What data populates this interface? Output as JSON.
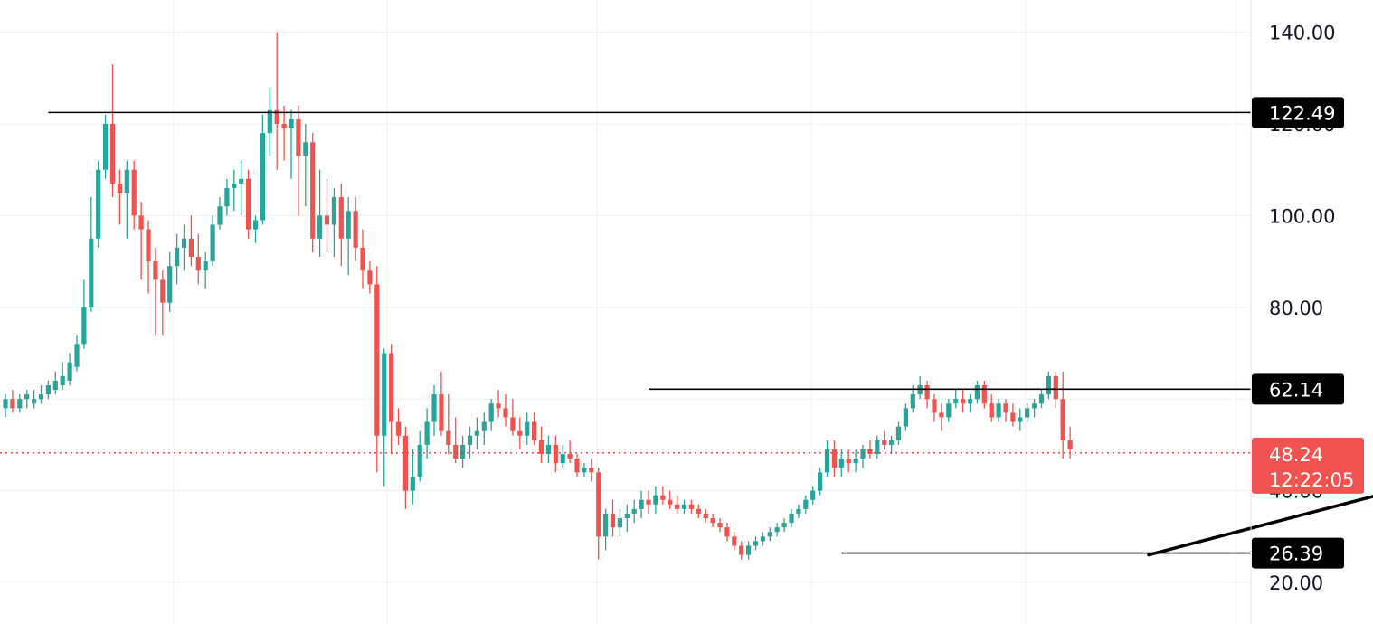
{
  "chart_data": {
    "type": "candlestick",
    "title": "",
    "xlabel": "",
    "ylabel": "",
    "ylim": [
      13,
      147
    ],
    "yticks": [
      "20.00",
      "40.00",
      "80.00",
      "100.00",
      "120.00",
      "140.00"
    ],
    "grid": true,
    "colors": {
      "up": "#26a69a",
      "down": "#ef5350",
      "line": "#000000",
      "grid": "#eef0f3",
      "price": "#f23645"
    },
    "horizontal_levels": [
      {
        "value": 122.49,
        "label": "122.49",
        "x_start": 6
      },
      {
        "value": 62.14,
        "label": "62.14",
        "x_start": 90
      },
      {
        "value": 26.39,
        "label": "26.39",
        "x_start": 117
      }
    ],
    "trendline": {
      "x_start": 160,
      "value_start": 26.0,
      "x_end": 240,
      "value_end": 58.5
    },
    "current_price": {
      "value": 48.24,
      "label": "48.24",
      "countdown": "12:22:05"
    },
    "candles": [
      [
        0,
        58,
        61,
        56,
        60
      ],
      [
        1,
        60,
        62,
        57,
        58
      ],
      [
        2,
        58,
        61,
        57,
        60
      ],
      [
        3,
        60,
        62,
        58,
        61
      ],
      [
        4,
        59,
        62,
        58,
        60
      ],
      [
        5,
        60,
        63,
        59,
        61
      ],
      [
        6,
        61,
        64,
        60,
        63
      ],
      [
        7,
        62,
        66,
        61,
        64
      ],
      [
        8,
        63,
        68,
        62,
        65
      ],
      [
        9,
        64,
        70,
        63,
        68
      ],
      [
        10,
        67,
        74,
        66,
        72
      ],
      [
        11,
        72,
        86,
        71,
        80
      ],
      [
        12,
        80,
        104,
        79,
        95
      ],
      [
        13,
        95,
        112,
        93,
        110
      ],
      [
        14,
        110,
        122,
        108,
        120
      ],
      [
        15,
        120,
        133,
        104,
        107
      ],
      [
        16,
        107,
        110,
        98,
        105
      ],
      [
        17,
        105,
        112,
        95,
        110
      ],
      [
        18,
        110,
        112,
        97,
        100
      ],
      [
        19,
        100,
        103,
        86,
        97
      ],
      [
        20,
        97,
        99,
        83,
        90
      ],
      [
        21,
        90,
        93,
        74,
        86
      ],
      [
        22,
        86,
        88,
        74,
        81
      ],
      [
        23,
        81,
        92,
        79,
        89
      ],
      [
        24,
        89,
        96,
        85,
        93
      ],
      [
        25,
        93,
        98,
        88,
        95
      ],
      [
        26,
        95,
        100,
        89,
        91
      ],
      [
        27,
        91,
        96,
        85,
        88
      ],
      [
        28,
        88,
        92,
        84,
        90
      ],
      [
        29,
        90,
        100,
        89,
        98
      ],
      [
        30,
        98,
        104,
        97,
        102
      ],
      [
        31,
        102,
        108,
        100,
        106
      ],
      [
        32,
        106,
        110,
        101,
        107
      ],
      [
        33,
        107,
        112,
        100,
        108
      ],
      [
        34,
        108,
        110,
        95,
        97
      ],
      [
        35,
        97,
        100,
        94,
        99
      ],
      [
        36,
        99,
        122,
        98,
        118
      ],
      [
        37,
        118,
        128,
        113,
        123
      ],
      [
        38,
        123,
        140,
        110,
        120
      ],
      [
        39,
        120,
        124,
        112,
        119
      ],
      [
        40,
        119,
        123,
        108,
        121
      ],
      [
        41,
        121,
        124,
        100,
        113
      ],
      [
        42,
        113,
        120,
        102,
        116
      ],
      [
        43,
        116,
        118,
        92,
        95
      ],
      [
        44,
        95,
        110,
        91,
        100
      ],
      [
        45,
        100,
        108,
        92,
        98
      ],
      [
        46,
        98,
        106,
        91,
        104
      ],
      [
        47,
        104,
        107,
        89,
        95
      ],
      [
        48,
        95,
        104,
        87,
        101
      ],
      [
        49,
        101,
        104,
        90,
        93
      ],
      [
        50,
        93,
        97,
        84,
        88
      ],
      [
        51,
        88,
        90,
        83,
        85
      ],
      [
        52,
        85,
        89,
        44,
        52
      ],
      [
        53,
        52,
        71,
        41,
        70
      ],
      [
        54,
        70,
        72,
        48,
        55
      ],
      [
        55,
        55,
        58,
        50,
        52
      ],
      [
        56,
        52,
        54,
        36,
        40
      ],
      [
        57,
        40,
        49,
        37,
        43
      ],
      [
        58,
        43,
        53,
        42,
        50
      ],
      [
        59,
        50,
        58,
        47,
        55
      ],
      [
        60,
        55,
        63,
        52,
        61
      ],
      [
        61,
        61,
        66,
        52,
        53
      ],
      [
        62,
        53,
        61,
        48,
        50
      ],
      [
        63,
        50,
        56,
        46,
        47
      ],
      [
        64,
        47,
        52,
        45,
        50
      ],
      [
        65,
        50,
        54,
        47,
        52
      ],
      [
        66,
        52,
        56,
        49,
        53
      ],
      [
        67,
        53,
        57,
        50,
        55
      ],
      [
        68,
        55,
        60,
        53,
        59
      ],
      [
        69,
        59,
        62,
        56,
        58
      ],
      [
        70,
        58,
        61,
        54,
        56
      ],
      [
        71,
        56,
        60,
        52,
        53
      ],
      [
        72,
        53,
        56,
        49,
        52
      ],
      [
        73,
        52,
        57,
        50,
        55
      ],
      [
        74,
        55,
        57,
        50,
        51
      ],
      [
        75,
        51,
        54,
        46,
        48
      ],
      [
        76,
        48,
        52,
        46,
        50
      ],
      [
        77,
        50,
        52,
        44,
        46
      ],
      [
        78,
        46,
        50,
        45,
        48
      ],
      [
        79,
        48,
        51,
        46,
        47
      ],
      [
        80,
        47,
        48,
        43,
        44
      ],
      [
        81,
        44,
        46,
        43,
        45
      ],
      [
        82,
        45,
        47,
        42,
        44
      ],
      [
        83,
        44,
        45,
        25,
        30
      ],
      [
        84,
        30,
        36,
        27,
        35
      ],
      [
        85,
        35,
        38,
        30,
        32
      ],
      [
        86,
        32,
        36,
        30,
        34
      ],
      [
        87,
        34,
        37,
        31,
        35
      ],
      [
        88,
        35,
        38,
        33,
        36
      ],
      [
        89,
        36,
        40,
        34,
        38
      ],
      [
        90,
        38,
        40,
        35,
        37
      ],
      [
        91,
        37,
        41,
        35,
        39
      ],
      [
        92,
        39,
        41,
        37,
        38
      ],
      [
        93,
        38,
        40,
        36,
        37
      ],
      [
        94,
        37,
        39,
        35,
        36
      ],
      [
        95,
        36,
        38,
        35,
        37
      ],
      [
        96,
        37,
        38,
        35,
        36
      ],
      [
        97,
        36,
        37,
        34,
        35
      ],
      [
        98,
        35,
        36,
        33,
        34
      ],
      [
        99,
        34,
        35,
        32,
        33
      ],
      [
        100,
        33,
        34,
        31,
        32
      ],
      [
        101,
        32,
        33,
        29,
        30
      ],
      [
        102,
        30,
        31,
        27,
        28
      ],
      [
        103,
        28,
        29,
        25,
        26
      ],
      [
        104,
        26,
        29,
        25,
        28
      ]
    ],
    "candles_2": [
      [
        105,
        28,
        30,
        27,
        29
      ],
      [
        106,
        29,
        31,
        28,
        30
      ],
      [
        107,
        30,
        32,
        29,
        31
      ],
      [
        108,
        31,
        33,
        30,
        32
      ],
      [
        109,
        32,
        34,
        31,
        33
      ],
      [
        110,
        33,
        36,
        32,
        35
      ],
      [
        111,
        35,
        37,
        34,
        36
      ],
      [
        112,
        36,
        39,
        35,
        38
      ],
      [
        113,
        38,
        41,
        37,
        40
      ],
      [
        114,
        40,
        45,
        39,
        44
      ],
      [
        115,
        44,
        51,
        43,
        49
      ],
      [
        116,
        49,
        51,
        43,
        45
      ],
      [
        117,
        45,
        49,
        43,
        47
      ],
      [
        118,
        47,
        49,
        44,
        46
      ],
      [
        119,
        46,
        49,
        44,
        47
      ],
      [
        120,
        47,
        50,
        45,
        49
      ],
      [
        121,
        49,
        51,
        47,
        48
      ],
      [
        122,
        48,
        52,
        47,
        51
      ],
      [
        123,
        51,
        53,
        49,
        50
      ],
      [
        124,
        50,
        52,
        48,
        51
      ],
      [
        125,
        51,
        55,
        50,
        54
      ],
      [
        126,
        54,
        59,
        53,
        58
      ],
      [
        127,
        58,
        63,
        57,
        61
      ],
      [
        128,
        61,
        65,
        60,
        63
      ],
      [
        129,
        63,
        64,
        58,
        60
      ],
      [
        130,
        60,
        61,
        55,
        57
      ],
      [
        131,
        57,
        59,
        53,
        56
      ],
      [
        132,
        56,
        60,
        55,
        59
      ],
      [
        133,
        59,
        62,
        58,
        60
      ],
      [
        134,
        60,
        62,
        57,
        59
      ],
      [
        135,
        59,
        61,
        57,
        60
      ],
      [
        136,
        60,
        64,
        59,
        63
      ],
      [
        137,
        63,
        64,
        58,
        59
      ],
      [
        138,
        59,
        61,
        55,
        56
      ],
      [
        139,
        56,
        60,
        55,
        59
      ],
      [
        140,
        59,
        60,
        55,
        57
      ],
      [
        141,
        57,
        59,
        54,
        55
      ],
      [
        142,
        55,
        58,
        53,
        56
      ],
      [
        143,
        56,
        59,
        55,
        58
      ],
      [
        144,
        58,
        60,
        56,
        59
      ],
      [
        145,
        59,
        62,
        58,
        61
      ],
      [
        146,
        61,
        66,
        60,
        65
      ],
      [
        147,
        65,
        66,
        58,
        60
      ],
      [
        148,
        60,
        66,
        47,
        51
      ],
      [
        149,
        51,
        54,
        47,
        49
      ]
    ]
  }
}
